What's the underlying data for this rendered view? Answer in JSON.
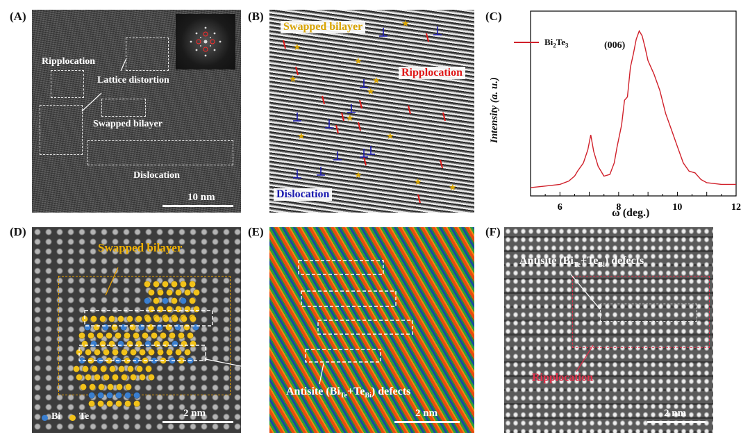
{
  "panel_labels": [
    "(A)",
    "(B)",
    "(C)",
    "(D)",
    "(E)",
    "(F)"
  ],
  "panelA": {
    "labels": {
      "ripplocation": "Ripplocation",
      "lattice_distortion": "Lattice distortion",
      "swapped_bilayer": "Swapped bilayer",
      "dislocation": "Dislocation"
    },
    "scale": "10 nm"
  },
  "panelB": {
    "labels": {
      "swapped_bilayer": "Swapped bilayer",
      "ripplocation": "Ripplocation",
      "dislocation": "Dislocation"
    },
    "colors": {
      "swapped": "#d9a400",
      "ripplocation": "#e01818",
      "dislocation": "#1a1ab0"
    }
  },
  "panelD": {
    "title": "Swapped bilayer",
    "legend_bi": "Bi",
    "legend_te": "Te",
    "scale": "2 nm",
    "colors": {
      "bi": "#3a7fd0",
      "te": "#f2c21a"
    }
  },
  "panelE": {
    "antisite_prefix": "Antisite (Bi",
    "sub1": "Te",
    "mid": "+Te",
    "sub2": "Bi",
    "suffix": ") defects",
    "scale": "2 nm"
  },
  "panelF": {
    "antisite_prefix": "Antisite (Bi",
    "sub1": "Te",
    "mid": "+Te",
    "sub2": "Bi",
    "suffix": ") defects",
    "ripplocation": "Ripplocation",
    "scale": "2 nm"
  },
  "chart_data": {
    "type": "line",
    "title": "",
    "legend": {
      "name_main": "Bi",
      "sub1": "2",
      "mid": "Te",
      "sub2": "3",
      "position": "top-left"
    },
    "peak_label": "(006)",
    "xlabel": "ω (deg.)",
    "ylabel": "Intensity (a. u.)",
    "xlim": [
      5,
      12
    ],
    "ylim": [
      0,
      1.12
    ],
    "xticks": [
      "6",
      "8",
      "10",
      "12"
    ],
    "color": "#d0202a",
    "series": [
      {
        "name": "Bi2Te3",
        "x": [
          5.0,
          5.5,
          6.0,
          6.3,
          6.5,
          6.6,
          6.8,
          6.95,
          7.05,
          7.15,
          7.3,
          7.5,
          7.7,
          7.85,
          7.95,
          8.1,
          8.2,
          8.3,
          8.4,
          8.5,
          8.6,
          8.7,
          8.8,
          8.9,
          9.0,
          9.2,
          9.4,
          9.6,
          9.8,
          10.0,
          10.2,
          10.4,
          10.6,
          10.8,
          11.0,
          11.5,
          12.0
        ],
        "y": [
          0.05,
          0.06,
          0.07,
          0.09,
          0.12,
          0.15,
          0.2,
          0.28,
          0.37,
          0.27,
          0.18,
          0.12,
          0.13,
          0.2,
          0.3,
          0.43,
          0.58,
          0.6,
          0.78,
          0.86,
          0.95,
          1.0,
          0.97,
          0.9,
          0.82,
          0.74,
          0.64,
          0.5,
          0.4,
          0.3,
          0.2,
          0.15,
          0.14,
          0.1,
          0.08,
          0.07,
          0.07
        ]
      }
    ]
  }
}
